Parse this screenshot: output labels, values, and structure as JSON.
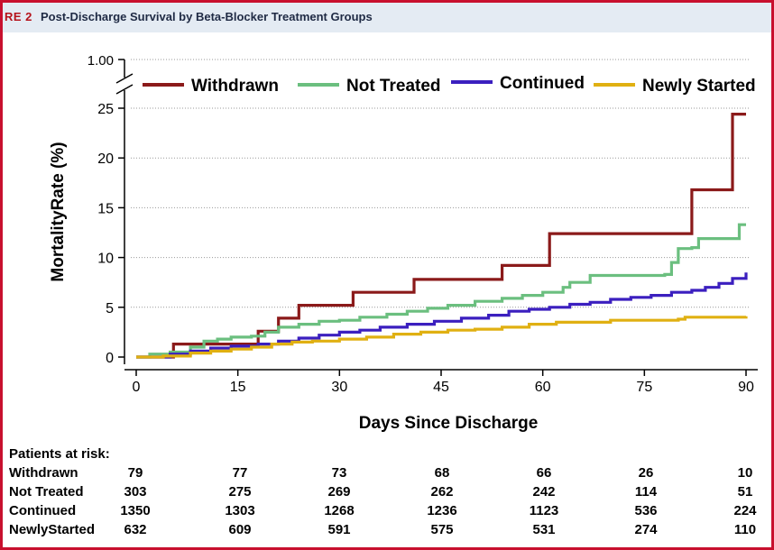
{
  "header": {
    "figure_label": "RE 2",
    "title": "Post-Discharge Survival by Beta-Blocker Treatment Groups"
  },
  "chart_data": {
    "type": "line",
    "step": true,
    "xlabel": "Days Since Discharge",
    "ylabel": "MortalityRate (%)",
    "xlim": [
      0,
      90
    ],
    "ylim": [
      0,
      25
    ],
    "x_ticks": [
      "0",
      "15",
      "30",
      "45",
      "60",
      "75",
      "90"
    ],
    "y_ticks": [
      "0",
      "5",
      "10",
      "15",
      "20",
      "25"
    ],
    "y_break_label": "1.00",
    "legend_position": "top",
    "series": [
      {
        "name": "Withdrawn",
        "color": "#8b1a1a",
        "points": [
          [
            0,
            0
          ],
          [
            5.5,
            0
          ],
          [
            5.5,
            1.3
          ],
          [
            18,
            1.3
          ],
          [
            18,
            2.6
          ],
          [
            21,
            2.6
          ],
          [
            21,
            3.9
          ],
          [
            24,
            3.9
          ],
          [
            24,
            5.2
          ],
          [
            32,
            5.2
          ],
          [
            32,
            6.5
          ],
          [
            41,
            6.5
          ],
          [
            41,
            7.8
          ],
          [
            54,
            7.8
          ],
          [
            54,
            9.2
          ],
          [
            61,
            9.2
          ],
          [
            61,
            12.4
          ],
          [
            82,
            12.4
          ],
          [
            82,
            16.8
          ],
          [
            88,
            16.8
          ],
          [
            88,
            24.4
          ],
          [
            90,
            24.4
          ]
        ]
      },
      {
        "name": "Not Treated",
        "color": "#6bbf7f",
        "points": [
          [
            0,
            0
          ],
          [
            2,
            0.3
          ],
          [
            5,
            0.5
          ],
          [
            8,
            1.0
          ],
          [
            10,
            1.6
          ],
          [
            12,
            1.8
          ],
          [
            14,
            2.0
          ],
          [
            17,
            2.1
          ],
          [
            19,
            2.5
          ],
          [
            21,
            3.0
          ],
          [
            24,
            3.3
          ],
          [
            27,
            3.6
          ],
          [
            30,
            3.7
          ],
          [
            33,
            4.0
          ],
          [
            37,
            4.3
          ],
          [
            40,
            4.6
          ],
          [
            43,
            4.9
          ],
          [
            46,
            5.2
          ],
          [
            50,
            5.6
          ],
          [
            54,
            5.9
          ],
          [
            57,
            6.2
          ],
          [
            60,
            6.5
          ],
          [
            63,
            7.0
          ],
          [
            64,
            7.5
          ],
          [
            67,
            8.2
          ],
          [
            72,
            8.2
          ],
          [
            78,
            8.3
          ],
          [
            79,
            9.5
          ],
          [
            80,
            10.9
          ],
          [
            82,
            11.0
          ],
          [
            83,
            11.9
          ],
          [
            88,
            11.9
          ],
          [
            89,
            13.3
          ],
          [
            90,
            13.3
          ]
        ]
      },
      {
        "name": "Continued",
        "color": "#3b1fbf",
        "points": [
          [
            0,
            0
          ],
          [
            5,
            0.3
          ],
          [
            8,
            0.6
          ],
          [
            11,
            0.9
          ],
          [
            14,
            1.1
          ],
          [
            18,
            1.3
          ],
          [
            21,
            1.6
          ],
          [
            24,
            1.9
          ],
          [
            27,
            2.2
          ],
          [
            30,
            2.5
          ],
          [
            33,
            2.7
          ],
          [
            36,
            3.0
          ],
          [
            40,
            3.3
          ],
          [
            44,
            3.6
          ],
          [
            48,
            3.9
          ],
          [
            52,
            4.2
          ],
          [
            55,
            4.6
          ],
          [
            58,
            4.8
          ],
          [
            61,
            5.0
          ],
          [
            64,
            5.3
          ],
          [
            67,
            5.5
          ],
          [
            70,
            5.8
          ],
          [
            73,
            6.0
          ],
          [
            76,
            6.2
          ],
          [
            79,
            6.5
          ],
          [
            82,
            6.7
          ],
          [
            84,
            7.0
          ],
          [
            86,
            7.4
          ],
          [
            88,
            7.9
          ],
          [
            90,
            8.5
          ]
        ]
      },
      {
        "name": "Newly Started",
        "color": "#e0b012",
        "points": [
          [
            0,
            0
          ],
          [
            4,
            0.1
          ],
          [
            8,
            0.4
          ],
          [
            11,
            0.6
          ],
          [
            14,
            0.8
          ],
          [
            17,
            1.0
          ],
          [
            20,
            1.3
          ],
          [
            23,
            1.5
          ],
          [
            26,
            1.6
          ],
          [
            30,
            1.8
          ],
          [
            34,
            2.0
          ],
          [
            38,
            2.3
          ],
          [
            42,
            2.5
          ],
          [
            46,
            2.7
          ],
          [
            50,
            2.8
          ],
          [
            54,
            3.0
          ],
          [
            58,
            3.3
          ],
          [
            62,
            3.5
          ],
          [
            70,
            3.7
          ],
          [
            80,
            3.8
          ],
          [
            81,
            4.0
          ],
          [
            90,
            4.1
          ]
        ]
      }
    ]
  },
  "risk_table": {
    "title": "Patients at risk:",
    "rows": [
      {
        "label": "Withdrawn",
        "values": [
          "79",
          "77",
          "73",
          "68",
          "66",
          "26",
          "10"
        ]
      },
      {
        "label": "Not Treated",
        "values": [
          "303",
          "275",
          "269",
          "262",
          "242",
          "114",
          "51"
        ]
      },
      {
        "label": "Continued",
        "values": [
          "1350",
          "1303",
          "1268",
          "1236",
          "1123",
          "536",
          "224"
        ]
      },
      {
        "label": "NewlyStarted",
        "values": [
          "632",
          "609",
          "591",
          "575",
          "531",
          "274",
          "110"
        ]
      }
    ]
  }
}
